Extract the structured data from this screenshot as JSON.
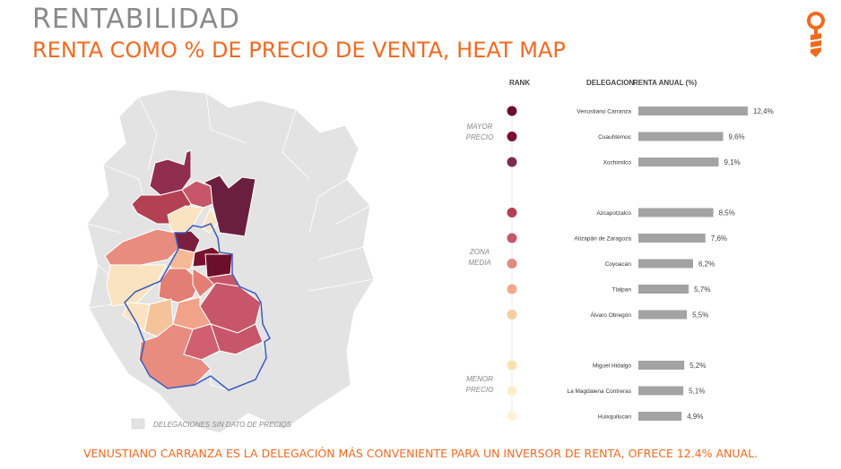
{
  "header": {
    "title": "RENTABILIDAD",
    "subtitle": "RENTA COMO % DE PRECIO DE VENTA, HEAT MAP"
  },
  "footer": {
    "text": "VENUSTIANO CARRANZA ES LA DELEGACIÓN MÁS CONVENIENTE PARA UN INVERSOR DE RENTA, OFRECE 12.4% ANUAL."
  },
  "map": {
    "legend_label": "DELEGACIONES SIN DATO DE PRECIOS",
    "no_data_color": "#e3e3e3",
    "border_color": "#3b5bbf"
  },
  "chart_data": {
    "type": "bar",
    "headers": {
      "rank": "RANK",
      "delegacion": "DELEGACION",
      "renta": "RENTA ANUAL (%)"
    },
    "zones": [
      {
        "label_lines": [
          "MAYOR",
          "PRECIO"
        ]
      },
      {
        "label_lines": [
          "ZONA",
          "MEDIA"
        ]
      },
      {
        "label_lines": [
          "MENOR",
          "PRECIO"
        ]
      }
    ],
    "categories": [
      "Venustiano Carranza",
      "Cuauhtémoc",
      "Xochimilco",
      "Azcapotzalco",
      "Atizapán de Zaragoza",
      "Coyoacán",
      "Tlalpan",
      "Álvaro Obregón",
      "Miguel Hidalgo",
      "La Magdalena Contreras",
      "Huixquilucan"
    ],
    "values": [
      12.4,
      9.6,
      9.1,
      8.5,
      7.6,
      6.2,
      5.7,
      5.5,
      5.2,
      5.1,
      4.9
    ],
    "value_labels": [
      "12,4%",
      "9,6%",
      "9,1%",
      "8,5%",
      "7,6%",
      "6,2%",
      "5,7%",
      "5,5%",
      "5,2%",
      "5,1%",
      "4,9%"
    ],
    "groups": [
      0,
      0,
      0,
      1,
      1,
      1,
      1,
      1,
      2,
      2,
      2
    ],
    "rank_colors": [
      "#6b0f2a",
      "#7a1030",
      "#7f2a4e",
      "#b34053",
      "#c8566a",
      "#e08a84",
      "#f0a98c",
      "#f5cfa2",
      "#f8e3b0",
      "#fbeecb",
      "#fcf2d8"
    ],
    "bar_color": "#a3a3a3",
    "xlim": [
      0,
      12.4
    ]
  }
}
